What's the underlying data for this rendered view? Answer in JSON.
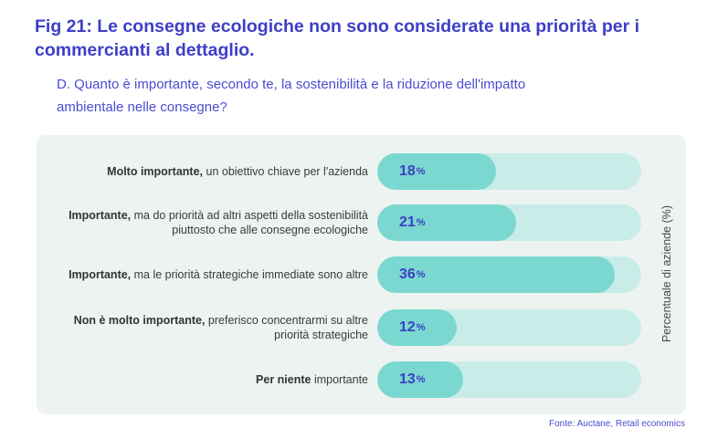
{
  "title": "Fig 21: Le consegne ecologiche non sono considerate una priorità per i commercianti al dettaglio.",
  "subtitle": "D. Quanto è importante, secondo te, la sostenibilità e la riduzione dell'impatto ambientale nelle consegne?",
  "source": "Fonte: Auctane, Retail economics",
  "chart_data": {
    "type": "bar",
    "orientation": "horizontal",
    "ylabel": "Percentuale di aziende (%)",
    "xlim": [
      0,
      40
    ],
    "grid": false,
    "categories": [
      {
        "bold": "Molto importante,",
        "text": " un obiettivo chiave per l'azienda"
      },
      {
        "bold": "Importante,",
        "text": " ma do priorità ad altri aspetti della sostenibilità piuttosto che alle consegne ecologiche"
      },
      {
        "bold": "Importante,",
        "text": " ma le priorità strategiche immediate sono altre"
      },
      {
        "bold": "Non è molto importante,",
        "text": " preferisco concentrarmi su altre priorità strategiche"
      },
      {
        "bold": "Per niente",
        "text": " importante"
      }
    ],
    "values": [
      18,
      21,
      36,
      12,
      13
    ],
    "unit": "%",
    "colors": {
      "fill": "#7ad8d0",
      "track": "#c8ede8",
      "value_text": "#3d3fc6"
    }
  }
}
